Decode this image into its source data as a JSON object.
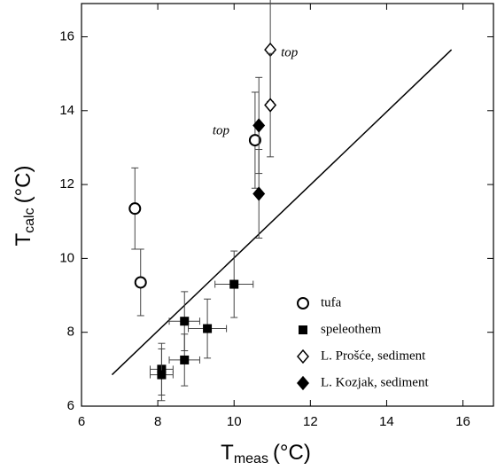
{
  "chart_data": {
    "type": "scatter",
    "x_label": {
      "main": "T",
      "sub": "meas",
      "unit": "(°C)"
    },
    "y_label": {
      "main": "T",
      "sub": "calc",
      "unit": "(°C)"
    },
    "xlim": [
      6,
      16.8
    ],
    "ylim": [
      6,
      16.9
    ],
    "xticks": [
      6,
      8,
      10,
      12,
      14,
      16
    ],
    "yticks": [
      6,
      8,
      10,
      12,
      14,
      16
    ],
    "legend": "lower right",
    "series": [
      {
        "name": "tufa",
        "marker": "circle-open",
        "color": "#000000",
        "x": [
          7.4,
          7.55,
          10.55
        ],
        "values": [
          11.35,
          9.35,
          13.2
        ],
        "yerr": [
          1.1,
          0.9,
          1.3
        ]
      },
      {
        "name": "speleothem",
        "marker": "square",
        "color": "#000000",
        "x": [
          8.1,
          8.1,
          8.7,
          8.7,
          9.3,
          10.0
        ],
        "values": [
          7.0,
          6.85,
          7.25,
          8.3,
          8.1,
          9.3
        ],
        "yerr": [
          0.7,
          0.7,
          0.7,
          0.8,
          0.8,
          0.9
        ],
        "xerr": [
          0.3,
          0.3,
          0.4,
          0.4,
          0.5,
          0.5
        ]
      },
      {
        "name": "L. Prošće, sediment",
        "marker": "diamond-open",
        "color": "#000000",
        "x": [
          10.95,
          10.95
        ],
        "values": [
          15.65,
          14.15
        ],
        "yerr": [
          1.4,
          1.4
        ]
      },
      {
        "name": "L. Kozjak, sediment",
        "marker": "diamond",
        "color": "#000000",
        "x": [
          10.65,
          10.65
        ],
        "values": [
          13.6,
          11.75
        ],
        "yerr": [
          1.3,
          1.2
        ]
      }
    ],
    "reference_line": {
      "x": [
        6.8,
        15.7
      ],
      "values": [
        6.85,
        15.65
      ]
    },
    "annotations": [
      {
        "text": "top"
      },
      {
        "text": "top"
      }
    ]
  }
}
